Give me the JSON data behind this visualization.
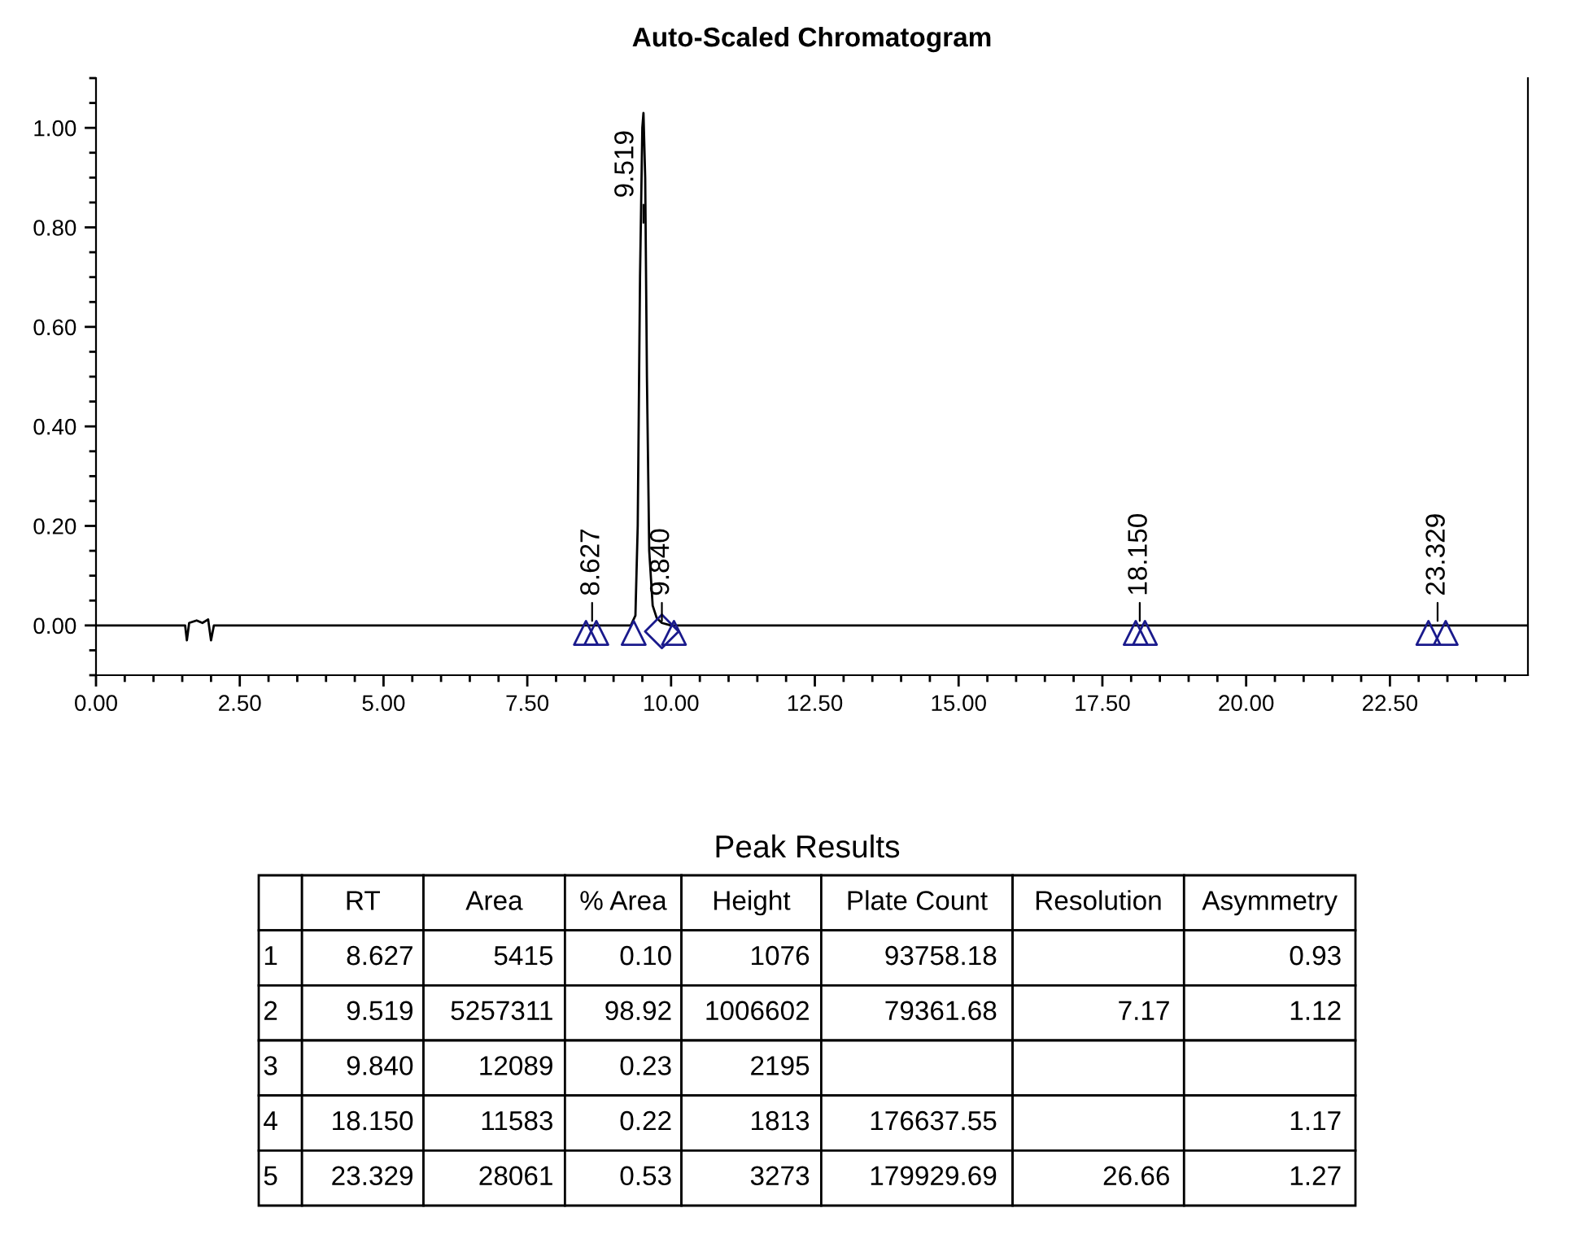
{
  "chart_data": {
    "type": "line",
    "title": "Auto-Scaled Chromatogram",
    "xlim": [
      0,
      24.9
    ],
    "ylim": [
      -0.1,
      1.1
    ],
    "xticks": [
      {
        "value": 0,
        "label": "0.00"
      },
      {
        "value": 2.5,
        "label": "2.50"
      },
      {
        "value": 5,
        "label": "5.00"
      },
      {
        "value": 7.5,
        "label": "7.50"
      },
      {
        "value": 10,
        "label": "10.00"
      },
      {
        "value": 12.5,
        "label": "12.50"
      },
      {
        "value": 15,
        "label": "15.00"
      },
      {
        "value": 17.5,
        "label": "17.50"
      },
      {
        "value": 20,
        "label": "20.00"
      },
      {
        "value": 22.5,
        "label": "22.50"
      }
    ],
    "yticks": [
      {
        "value": 0,
        "label": "0.00"
      },
      {
        "value": 0.2,
        "label": "0.20"
      },
      {
        "value": 0.4,
        "label": "0.40"
      },
      {
        "value": 0.6,
        "label": "0.60"
      },
      {
        "value": 0.8,
        "label": "0.80"
      },
      {
        "value": 1.0,
        "label": "1.00"
      }
    ],
    "grid": false,
    "series": [
      {
        "color": "#000000",
        "marker": "none",
        "line_style": "solid",
        "x": [
          0,
          1.55,
          1.58,
          1.62,
          1.75,
          1.85,
          1.95,
          2.0,
          2.05,
          9.3,
          9.38,
          9.42,
          9.46,
          9.5,
          9.52,
          9.55,
          9.58,
          9.62,
          9.68,
          9.75,
          9.84,
          10.0,
          24.9
        ],
        "values": [
          0,
          0,
          -0.03,
          0.005,
          0.01,
          0.005,
          0.012,
          -0.03,
          0,
          0,
          0.02,
          0.2,
          0.7,
          1.0,
          1.03,
          0.9,
          0.5,
          0.15,
          0.04,
          0.015,
          0.005,
          0,
          0
        ]
      },
      {
        "type": "scatter",
        "color": "#1a1a8c",
        "marker": "triangle",
        "x": [
          8.52,
          8.7,
          9.35,
          10.05,
          18.08,
          18.24,
          23.17,
          23.47
        ],
        "values": [
          -0.015,
          -0.015,
          -0.015,
          -0.015,
          -0.015,
          -0.015,
          -0.015,
          -0.015
        ]
      },
      {
        "type": "scatter",
        "color": "#1a1a8c",
        "marker": "diamond",
        "x": [
          9.84
        ],
        "values": [
          -0.012
        ]
      }
    ],
    "annotations": [
      {
        "text": "8.627",
        "x": 8.627,
        "y": 0.0
      },
      {
        "text": "9.519",
        "x": 9.519,
        "y": 0.8
      },
      {
        "text": "9.840",
        "x": 9.84,
        "y": 0.0
      },
      {
        "text": "18.150",
        "x": 18.15,
        "y": 0.0
      },
      {
        "text": "23.329",
        "x": 23.329,
        "y": 0.0
      },
      "Peak Results",
      null,
      "RT",
      "Area",
      "% Area",
      "Height",
      "Plate Count",
      "Resolution",
      "Asymmetry",
      "1",
      "8.627",
      "5415",
      "0.10",
      "1076",
      "93758.18",
      null,
      "0.93",
      "2",
      "9.519",
      "5257311",
      "98.92",
      "1006602",
      "79361.68",
      "7.17",
      "1.12",
      "3",
      "9.840",
      "12089",
      "0.23",
      "2195",
      null,
      null,
      null,
      "4",
      "18.150",
      "11583",
      "0.22",
      "1813",
      "176637.55",
      null,
      "1.17",
      "5",
      "23.329",
      "28061",
      "0.53",
      "3273",
      "179929.69",
      "26.66",
      "1.27"
    ]
  }
}
